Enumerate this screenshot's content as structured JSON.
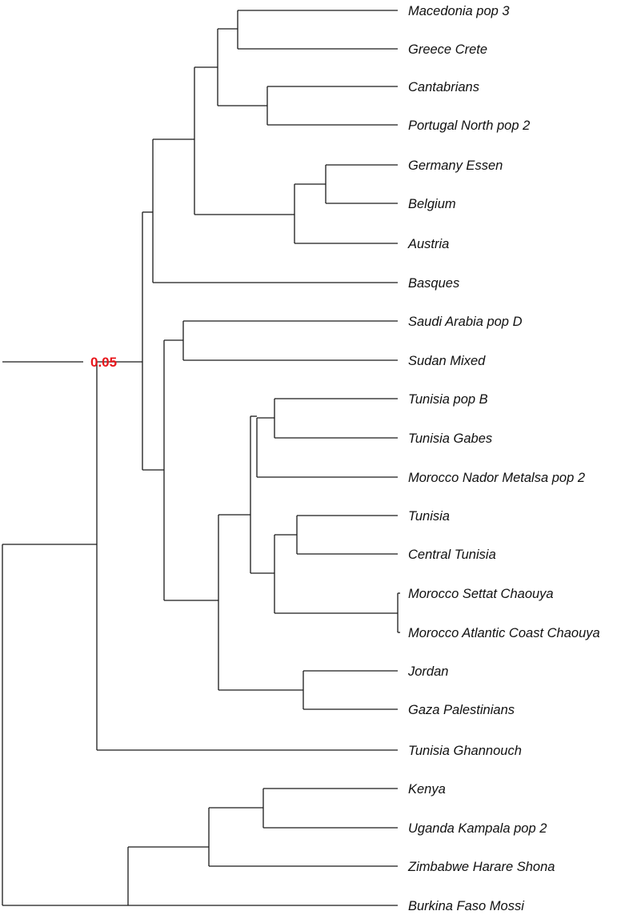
{
  "tree": {
    "line_color": "#1a1a1a",
    "tips": [
      "Macedonia pop 3",
      "Greece Crete",
      "Cantabrians",
      "Portugal North pop 2",
      "Germany Essen",
      "Belgium",
      "Austria",
      "Basques",
      "Saudi Arabia pop D",
      "Sudan Mixed",
      "Tunisia pop B",
      "Tunisia Gabes",
      "Morocco Nador Metalsa pop 2",
      "Tunisia",
      "Central Tunisia",
      "Morocco Settat Chaouya",
      "Morocco Atlantic Coast Chaouya",
      "Jordan",
      "Gaza Palestinians",
      "Tunisia Ghannouch",
      "Kenya",
      "Uganda Kampala pop 2",
      "Zimbabwe Harare Shona",
      "Burkina Faso Mossi"
    ],
    "scale_bar": {
      "label": "0.05",
      "color": "#e8161b"
    }
  }
}
